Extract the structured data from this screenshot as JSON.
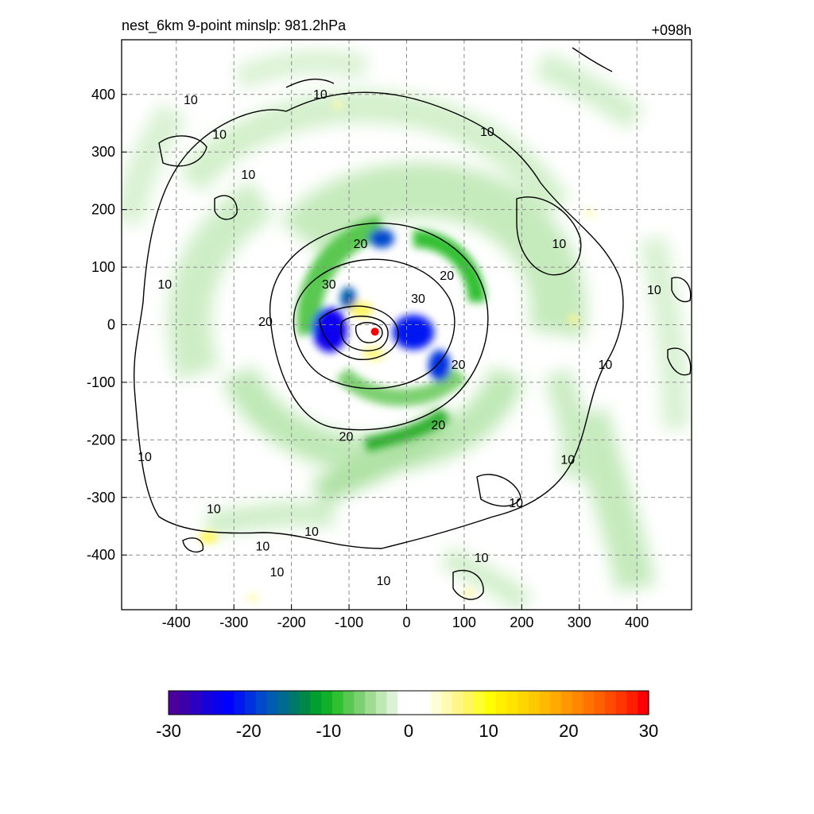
{
  "header": {
    "left_title": "nest_6km  9-point minslp: 981.2hPa",
    "right_title": "+098h"
  },
  "chart_data": {
    "type": "heatmap",
    "title": "nest_6km  9-point minslp: 981.2hPa",
    "time_label": "+098h",
    "min_slp_hPa": 981.2,
    "xlim": [
      -495,
      495
    ],
    "ylim": [
      -495,
      495
    ],
    "x_ticks": [
      -400,
      -300,
      -200,
      -100,
      0,
      100,
      200,
      300,
      400
    ],
    "y_ticks": [
      400,
      300,
      200,
      100,
      0,
      -100,
      -200,
      -300,
      -400
    ],
    "grid": true,
    "center_marker": {
      "x": -55,
      "y": -12,
      "color": "#ff0000"
    },
    "shaded_field": {
      "colorbar_min": -30,
      "colorbar_max": 30,
      "colorbar_ticks": [
        -30,
        -20,
        -10,
        0,
        10,
        20,
        30
      ],
      "colorbar_colors": [
        "#4a0099",
        "#3c00aa",
        "#2c00c0",
        "#1a00d8",
        "#0a00ee",
        "#0000ff",
        "#0018f0",
        "#0030e0",
        "#0048cc",
        "#005cb0",
        "#006a90",
        "#00786a",
        "#008848",
        "#00a030",
        "#10b028",
        "#30c030",
        "#58c850",
        "#7cd070",
        "#9edc92",
        "#bee8b4",
        "#dcf2d8",
        "#ffffff",
        "#ffffff",
        "#ffffff",
        "#fffdd8",
        "#fffbb0",
        "#fff888",
        "#fff660",
        "#ffff30",
        "#ffff00",
        "#fff000",
        "#ffe400",
        "#ffd600",
        "#ffc800",
        "#ffba00",
        "#ffaa00",
        "#ff9800",
        "#ff8600",
        "#ff7400",
        "#ff6000",
        "#ff4c00",
        "#ff3600",
        "#ff1e00",
        "#ff0000"
      ],
      "features": [
        {
          "kind": "inner-core-blue",
          "x": -130,
          "y": 5,
          "value": -22
        },
        {
          "kind": "inner-core-blue",
          "x": 5,
          "y": 5,
          "value": -22
        },
        {
          "kind": "inner-core-blue",
          "x": 50,
          "y": -55,
          "value": -20
        },
        {
          "kind": "inner-core-blue",
          "x": -10,
          "y": 145,
          "value": -20
        },
        {
          "kind": "inner-core-yellow",
          "x": -70,
          "y": 15,
          "value": 10
        },
        {
          "kind": "inner-core-yellow",
          "x": -50,
          "y": -40,
          "value": 8
        }
      ]
    },
    "contours": {
      "levels": [
        10,
        20,
        30
      ],
      "labels": [
        {
          "text": "10",
          "x": -375,
          "y": 390
        },
        {
          "text": "10",
          "x": -325,
          "y": 330
        },
        {
          "text": "10",
          "x": -275,
          "y": 260
        },
        {
          "text": "10",
          "x": -150,
          "y": 400
        },
        {
          "text": "10",
          "x": 140,
          "y": 335
        },
        {
          "text": "10",
          "x": -420,
          "y": 70
        },
        {
          "text": "10",
          "x": 265,
          "y": 140
        },
        {
          "text": "10",
          "x": 430,
          "y": 60
        },
        {
          "text": "10",
          "x": 345,
          "y": -70
        },
        {
          "text": "10",
          "x": -455,
          "y": -230
        },
        {
          "text": "10",
          "x": -335,
          "y": -320
        },
        {
          "text": "10",
          "x": -250,
          "y": -385
        },
        {
          "text": "10",
          "x": -165,
          "y": -360
        },
        {
          "text": "10",
          "x": -225,
          "y": -430
        },
        {
          "text": "10",
          "x": -40,
          "y": -445
        },
        {
          "text": "10",
          "x": 130,
          "y": -405
        },
        {
          "text": "10",
          "x": 190,
          "y": -310
        },
        {
          "text": "10",
          "x": 280,
          "y": -235
        },
        {
          "text": "20",
          "x": -80,
          "y": 140
        },
        {
          "text": "20",
          "x": -245,
          "y": 5
        },
        {
          "text": "20",
          "x": -105,
          "y": -195
        },
        {
          "text": "20",
          "x": 55,
          "y": -175
        },
        {
          "text": "20",
          "x": 90,
          "y": -70
        },
        {
          "text": "20",
          "x": 70,
          "y": 85
        },
        {
          "text": "30",
          "x": -135,
          "y": 70
        },
        {
          "text": "30",
          "x": 20,
          "y": 45
        }
      ]
    }
  }
}
